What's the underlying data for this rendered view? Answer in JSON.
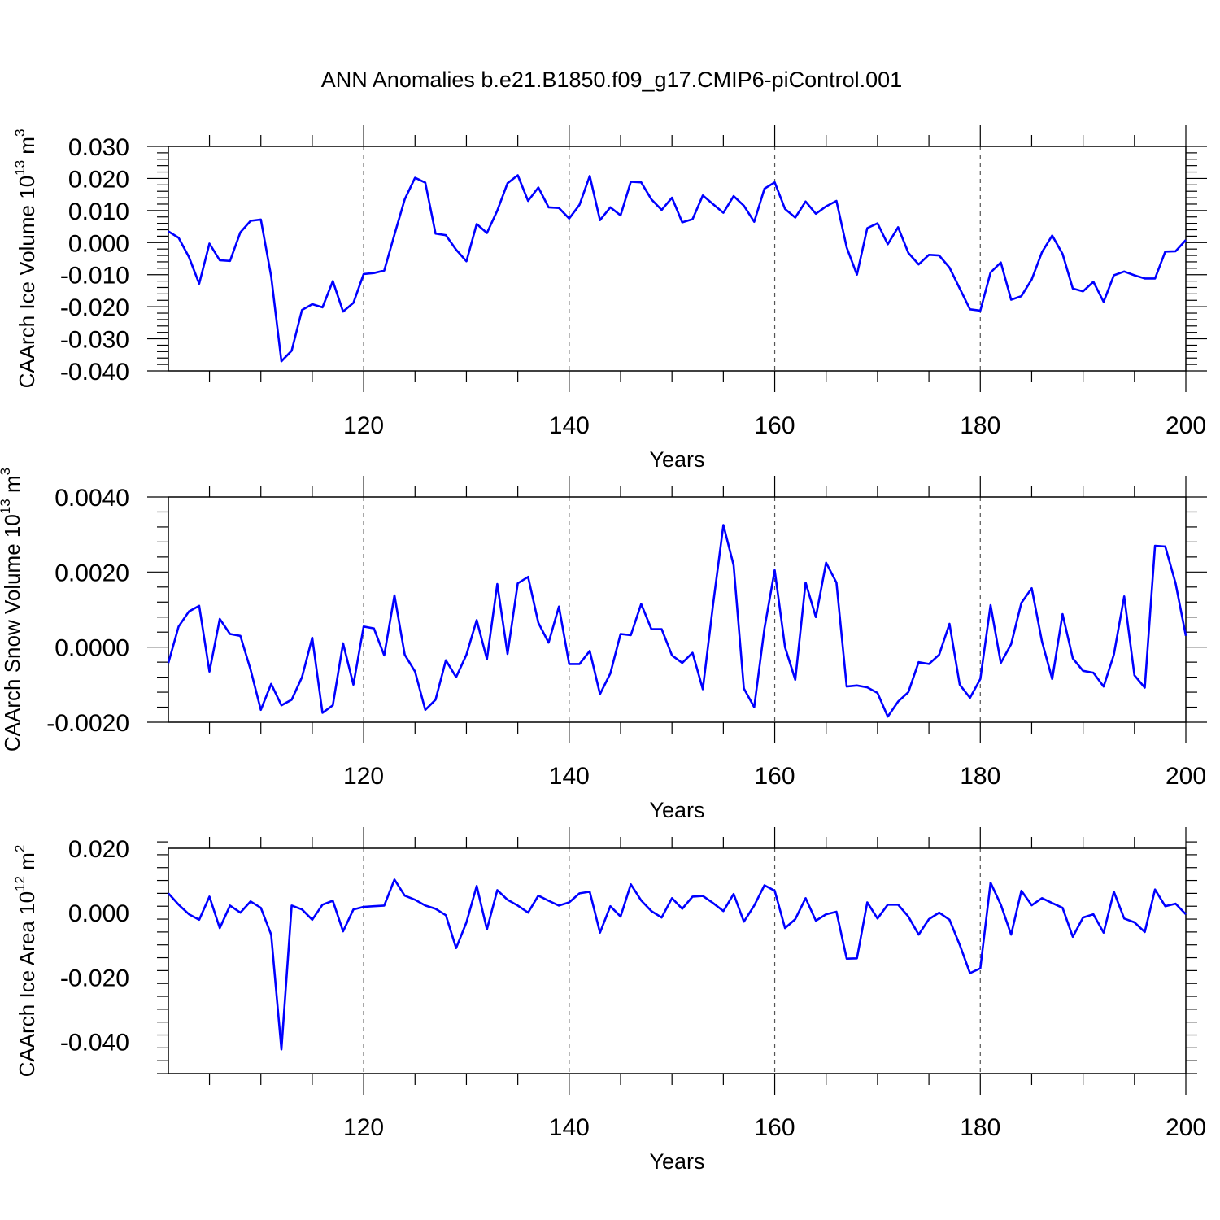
{
  "title": "ANN Anomalies b.e21.B1850.f09_g17.CMIP6-piControl.001",
  "chart_data": [
    {
      "type": "line",
      "ylabel_main": "CAArch Ice Volume 10",
      "ylabel_exp": "13",
      "ylabel_unit": " m",
      "ylabel_unit_exp": "3",
      "xlabel": "Years",
      "xlim": [
        101,
        200
      ],
      "ylim": [
        -0.04,
        0.03
      ],
      "xticks": [
        120,
        140,
        160,
        180,
        200
      ],
      "xtick_labels": [
        "120",
        "140",
        "160",
        "180",
        "200"
      ],
      "yticks": [
        0.03,
        0.02,
        0.01,
        0.0,
        -0.01,
        -0.02,
        -0.03,
        -0.04
      ],
      "ytick_labels": [
        "0.030",
        "0.020",
        "0.010",
        "0.000",
        "-0.010",
        "-0.020",
        "-0.030",
        "-0.040"
      ],
      "grid_x": true,
      "series_color": "#0000ff",
      "x_start": 101,
      "values": [
        0.0035,
        0.0015,
        -0.0045,
        -0.0128,
        -0.0003,
        -0.0055,
        -0.0057,
        0.0032,
        0.0068,
        0.0072,
        -0.0105,
        -0.037,
        -0.0337,
        -0.021,
        -0.0192,
        -0.0202,
        -0.012,
        -0.0215,
        -0.0188,
        -0.0098,
        -0.0095,
        -0.0087,
        0.0025,
        0.0135,
        0.0202,
        0.0187,
        0.0028,
        0.0023,
        -0.0022,
        -0.0058,
        0.0058,
        0.003,
        0.01,
        0.0185,
        0.021,
        0.013,
        0.0172,
        0.011,
        0.0108,
        0.0075,
        0.0118,
        0.0208,
        0.007,
        0.011,
        0.0085,
        0.019,
        0.0188,
        0.0135,
        0.0102,
        0.014,
        0.0063,
        0.0073,
        0.0147,
        0.012,
        0.0093,
        0.0145,
        0.0115,
        0.0065,
        0.0168,
        0.0188,
        0.0105,
        0.0078,
        0.0128,
        0.009,
        0.0113,
        0.013,
        -0.0015,
        -0.01,
        0.0045,
        0.006,
        -0.0005,
        0.0048,
        -0.0032,
        -0.0068,
        -0.0038,
        -0.004,
        -0.0078,
        -0.0143,
        -0.0208,
        -0.0212,
        -0.0093,
        -0.0062,
        -0.0178,
        -0.0167,
        -0.0115,
        -0.003,
        0.0022,
        -0.0035,
        -0.0143,
        -0.0152,
        -0.0122,
        -0.0185,
        -0.0102,
        -0.009,
        -0.0102,
        -0.0112,
        -0.0112,
        -0.0028,
        -0.0027,
        0.0008
      ]
    },
    {
      "type": "line",
      "ylabel_main": "CAArch Snow Volume 10",
      "ylabel_exp": "13",
      "ylabel_unit": " m",
      "ylabel_unit_exp": "3",
      "xlabel": "Years",
      "xlim": [
        101,
        200
      ],
      "ylim": [
        -0.002,
        0.004
      ],
      "xticks": [
        120,
        140,
        160,
        180,
        200
      ],
      "xtick_labels": [
        "120",
        "140",
        "160",
        "180",
        "200"
      ],
      "yticks": [
        0.004,
        0.002,
        0.0,
        -0.002
      ],
      "ytick_labels": [
        "0.0040",
        "0.0020",
        "0.0000",
        "-0.0020"
      ],
      "grid_x": true,
      "series_color": "#0000ff",
      "x_start": 101,
      "values": [
        -0.00042,
        0.00055,
        0.00095,
        0.0011,
        -0.00065,
        0.00075,
        0.00035,
        0.0003,
        -0.0006,
        -0.00167,
        -0.00098,
        -0.00155,
        -0.0014,
        -0.0008,
        0.00025,
        -0.00175,
        -0.00155,
        0.0001,
        -0.001,
        0.00055,
        0.0005,
        -0.00022,
        0.00138,
        -0.0002,
        -0.00065,
        -0.00167,
        -0.0014,
        -0.00035,
        -0.0008,
        -0.0002,
        0.00072,
        -0.00032,
        0.00168,
        -0.00018,
        0.0017,
        0.00187,
        0.00065,
        0.00012,
        0.00108,
        -0.00045,
        -0.00045,
        -0.0001,
        -0.00125,
        -0.0007,
        0.00035,
        0.00032,
        0.00115,
        0.00048,
        0.00048,
        -0.00022,
        -0.00042,
        -0.00015,
        -0.00112,
        0.00113,
        0.00325,
        0.00218,
        -0.0011,
        -0.0016,
        0.0005,
        0.00205,
        0.0,
        -0.00087,
        0.00172,
        0.0008,
        0.00225,
        0.00172,
        -0.00105,
        -0.00102,
        -0.00107,
        -0.00122,
        -0.00185,
        -0.00145,
        -0.0012,
        -0.0004,
        -0.00045,
        -0.0002,
        0.00062,
        -0.001,
        -0.00135,
        -0.00085,
        0.00112,
        -0.00042,
        8e-05,
        0.00118,
        0.00157,
        0.00015,
        -0.00085,
        0.00088,
        -0.0003,
        -0.00063,
        -0.00068,
        -0.00105,
        -0.0002,
        0.00135,
        -0.00075,
        -0.00108,
        0.0027,
        0.00268,
        0.0017,
        0.0003
      ]
    },
    {
      "type": "line",
      "ylabel_main": "CAArch Ice Area 10",
      "ylabel_exp": "12",
      "ylabel_unit": " m",
      "ylabel_unit_exp": "2",
      "xlabel": "Years",
      "xlim": [
        101,
        200
      ],
      "ylim": [
        -0.05,
        0.02
      ],
      "xticks": [
        120,
        140,
        160,
        180,
        200
      ],
      "xtick_labels": [
        "120",
        "140",
        "160",
        "180",
        "200"
      ],
      "yticks": [
        0.02,
        0.0,
        -0.02,
        -0.04
      ],
      "ytick_labels": [
        "0.020",
        "0.000",
        "-0.020",
        "-0.040"
      ],
      "grid_x": true,
      "series_color": "#0000ff",
      "x_start": 101,
      "values": [
        0.006,
        0.0025,
        -0.0005,
        -0.0022,
        0.005,
        -0.0048,
        0.0022,
        0.0,
        0.0035,
        0.0015,
        -0.0068,
        -0.0425,
        0.0022,
        0.001,
        -0.0022,
        0.0025,
        0.0037,
        -0.0058,
        0.001,
        0.0018,
        0.002,
        0.0022,
        0.0103,
        0.0053,
        0.004,
        0.0022,
        0.0012,
        -0.0008,
        -0.011,
        -0.003,
        0.0083,
        -0.0052,
        0.007,
        0.004,
        0.0022,
        0.0,
        0.0053,
        0.0037,
        0.0022,
        0.0032,
        0.006,
        0.0065,
        -0.0062,
        0.002,
        -0.0012,
        0.0088,
        0.0038,
        0.0005,
        -0.0015,
        0.0045,
        0.0012,
        0.005,
        0.0052,
        0.003,
        0.0005,
        0.0058,
        -0.0028,
        0.0022,
        0.0085,
        0.0068,
        -0.0048,
        -0.002,
        0.0045,
        -0.0025,
        -0.0005,
        0.0003,
        -0.0143,
        -0.0142,
        0.0032,
        -0.0018,
        0.0025,
        0.0025,
        -0.0012,
        -0.0068,
        -0.002,
        0.0,
        -0.0022,
        -0.01,
        -0.0188,
        -0.0173,
        0.0093,
        0.0025,
        -0.0068,
        0.0068,
        0.0023,
        0.0045,
        0.003,
        0.0015,
        -0.0075,
        -0.0015,
        -0.0005,
        -0.0062,
        0.0065,
        -0.0018,
        -0.003,
        -0.006,
        0.0072,
        0.002,
        0.0028,
        -0.0005
      ]
    }
  ]
}
